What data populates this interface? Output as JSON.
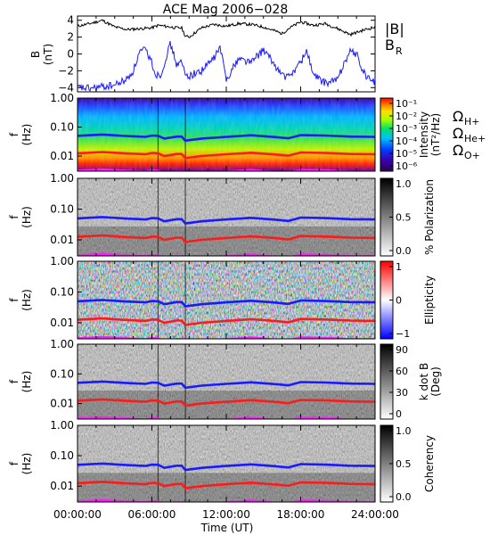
{
  "title": "ACE Mag 2006−028",
  "xlabel": "Time (UT)",
  "x_ticks": [
    "00:00:00",
    "06:00:00",
    "12:00:00",
    "18:00:00",
    "24:00:00"
  ],
  "colors": {
    "btotal": "#000000",
    "br": "#1a1aff",
    "h_plus": "#1a1aff",
    "he_plus": "#ff1a1a",
    "o_plus": "#ff1aff"
  },
  "chart_data": [
    {
      "type": "line",
      "panel": "B",
      "ylabel": [
        "B",
        "(nT)"
      ],
      "yticks": [
        "4",
        "2",
        "0",
        "−2",
        "−4"
      ],
      "ylim": [
        -4.5,
        4.5
      ],
      "xlim_hours": [
        0,
        24
      ],
      "legend": [
        "|B|",
        "B",
        "R"
      ],
      "series": [
        {
          "name": "|B|",
          "color": "#000000",
          "x_hours": [
            0,
            1,
            2,
            3,
            4,
            5,
            6,
            6.5,
            7,
            8,
            8.4,
            8.7,
            9,
            10,
            11,
            12,
            13,
            14,
            15,
            16,
            16.5,
            17,
            18,
            19,
            20,
            21,
            22,
            23,
            24
          ],
          "values": [
            3.3,
            3.6,
            4.0,
            3.2,
            2.9,
            3.0,
            3.1,
            3.4,
            3.3,
            3.1,
            3.1,
            2.1,
            2.0,
            3.1,
            3.5,
            3.3,
            3.6,
            3.5,
            3.2,
            2.7,
            2.4,
            3.0,
            3.8,
            3.4,
            3.6,
            3.0,
            2.3,
            2.8,
            3.2
          ]
        },
        {
          "name": "B_R",
          "color": "#1a1aff",
          "x_hours": [
            0,
            1,
            2,
            3,
            4,
            4.5,
            5,
            5.5,
            6,
            6.3,
            6.8,
            7,
            7.5,
            8,
            8.4,
            8.7,
            9,
            10,
            11,
            11.5,
            12,
            13,
            14,
            15,
            16,
            16.5,
            17,
            18,
            18.5,
            19,
            20,
            21,
            21.5,
            22,
            22.5,
            23,
            23.5,
            24
          ],
          "values": [
            -4.0,
            -4.1,
            -3.9,
            -3.7,
            -3.0,
            -2.0,
            0.2,
            0.5,
            -1.0,
            -2.5,
            -2.4,
            -1.0,
            1.2,
            -1.3,
            -1.0,
            -2.5,
            -2.6,
            -2.0,
            -0.5,
            0.8,
            -3.0,
            -0.5,
            -1.0,
            0.5,
            -1.5,
            -2.5,
            -2.8,
            -1.0,
            0.5,
            -2.5,
            -3.5,
            -3.0,
            -1.0,
            0.3,
            0.0,
            -2.0,
            -3.0,
            -3.3
          ]
        }
      ]
    },
    {
      "type": "heatmap",
      "panel": "Intensity",
      "ylabel": [
        "f",
        "(Hz)"
      ],
      "yscale": "log",
      "ylim": [
        0.003,
        1.0
      ],
      "yticks": [
        "1.00",
        "0.10",
        "0.01"
      ],
      "colorbar": {
        "label": [
          "Intensity",
          "(nT²/Hz)"
        ],
        "scale": "log",
        "ticks": [
          "10⁻¹",
          "10⁻²",
          "10⁻³",
          "10⁻⁴",
          "10⁻⁵",
          "10⁻⁶"
        ],
        "colormap": "rainbow"
      },
      "gyrofrequencies": true
    },
    {
      "type": "heatmap",
      "panel": "Polarization",
      "ylabel": [
        "f",
        "(Hz)"
      ],
      "yscale": "log",
      "yticks": [
        "1.00",
        "0.10",
        "0.01"
      ],
      "colorbar": {
        "label": [
          "% Polarization"
        ],
        "ticks": [
          "1.0",
          "0.5",
          "0.0"
        ],
        "colormap": "gray"
      },
      "gyrofrequencies": true
    },
    {
      "type": "heatmap",
      "panel": "Ellipticity",
      "ylabel": [
        "f",
        "(Hz)"
      ],
      "yscale": "log",
      "yticks": [
        "1.00",
        "0.10",
        "0.01"
      ],
      "colorbar": {
        "label": [
          "Ellipticity"
        ],
        "ticks": [
          "1",
          "0",
          "−1"
        ],
        "colormap": "bluewhitered"
      },
      "gyrofrequencies": true
    },
    {
      "type": "heatmap",
      "panel": "k dot B",
      "ylabel": [
        "f",
        "(Hz)"
      ],
      "yscale": "log",
      "yticks": [
        "1.00",
        "0.10",
        "0.01"
      ],
      "colorbar": {
        "label": [
          "k dot B",
          "(Deg)"
        ],
        "ticks": [
          "90",
          "60",
          "30",
          "0"
        ],
        "colormap": "gray"
      },
      "gyrofrequencies": true
    },
    {
      "type": "heatmap",
      "panel": "Coherency",
      "ylabel": [
        "f",
        "(Hz)"
      ],
      "yscale": "log",
      "yticks": [
        "1.00",
        "0.10",
        "0.01"
      ],
      "colorbar": {
        "label": [
          "Coherency"
        ],
        "ticks": [
          "1.0",
          "0.5",
          "0.0"
        ],
        "colormap": "gray"
      },
      "gyrofrequencies": true
    }
  ],
  "gyrofrequency_legend": [
    {
      "symbol": "Ω",
      "sub": "H+",
      "color": "#1a1aff"
    },
    {
      "symbol": "Ω",
      "sub": "He+",
      "color": "#ff1a1a"
    },
    {
      "symbol": "Ω",
      "sub": "O+",
      "color": "#ff1aff"
    }
  ],
  "gyrofrequency_hz": {
    "x_hours": [
      0,
      2,
      4,
      5.5,
      6,
      6.5,
      7,
      8,
      8.4,
      8.7,
      10,
      12,
      14,
      16,
      17,
      18,
      20,
      22,
      24
    ],
    "h_plus": [
      0.05,
      0.055,
      0.049,
      0.046,
      0.051,
      0.05,
      0.04,
      0.047,
      0.047,
      0.034,
      0.04,
      0.046,
      0.052,
      0.045,
      0.041,
      0.053,
      0.051,
      0.047,
      0.046
    ],
    "he_plus": [
      0.0125,
      0.0138,
      0.0123,
      0.0115,
      0.0128,
      0.0125,
      0.01,
      0.0118,
      0.0118,
      0.0085,
      0.01,
      0.0115,
      0.013,
      0.0113,
      0.0103,
      0.0133,
      0.0128,
      0.0118,
      0.0115
    ],
    "o_plus": [
      0.0031,
      0.0034,
      0.0031,
      0.0029,
      0.0032,
      0.0031,
      0.0025,
      0.0029,
      0.0029,
      0.0021,
      0.0025,
      0.0029,
      0.0033,
      0.0028,
      0.0026,
      0.0033,
      0.0032,
      0.0029,
      0.0029
    ]
  }
}
